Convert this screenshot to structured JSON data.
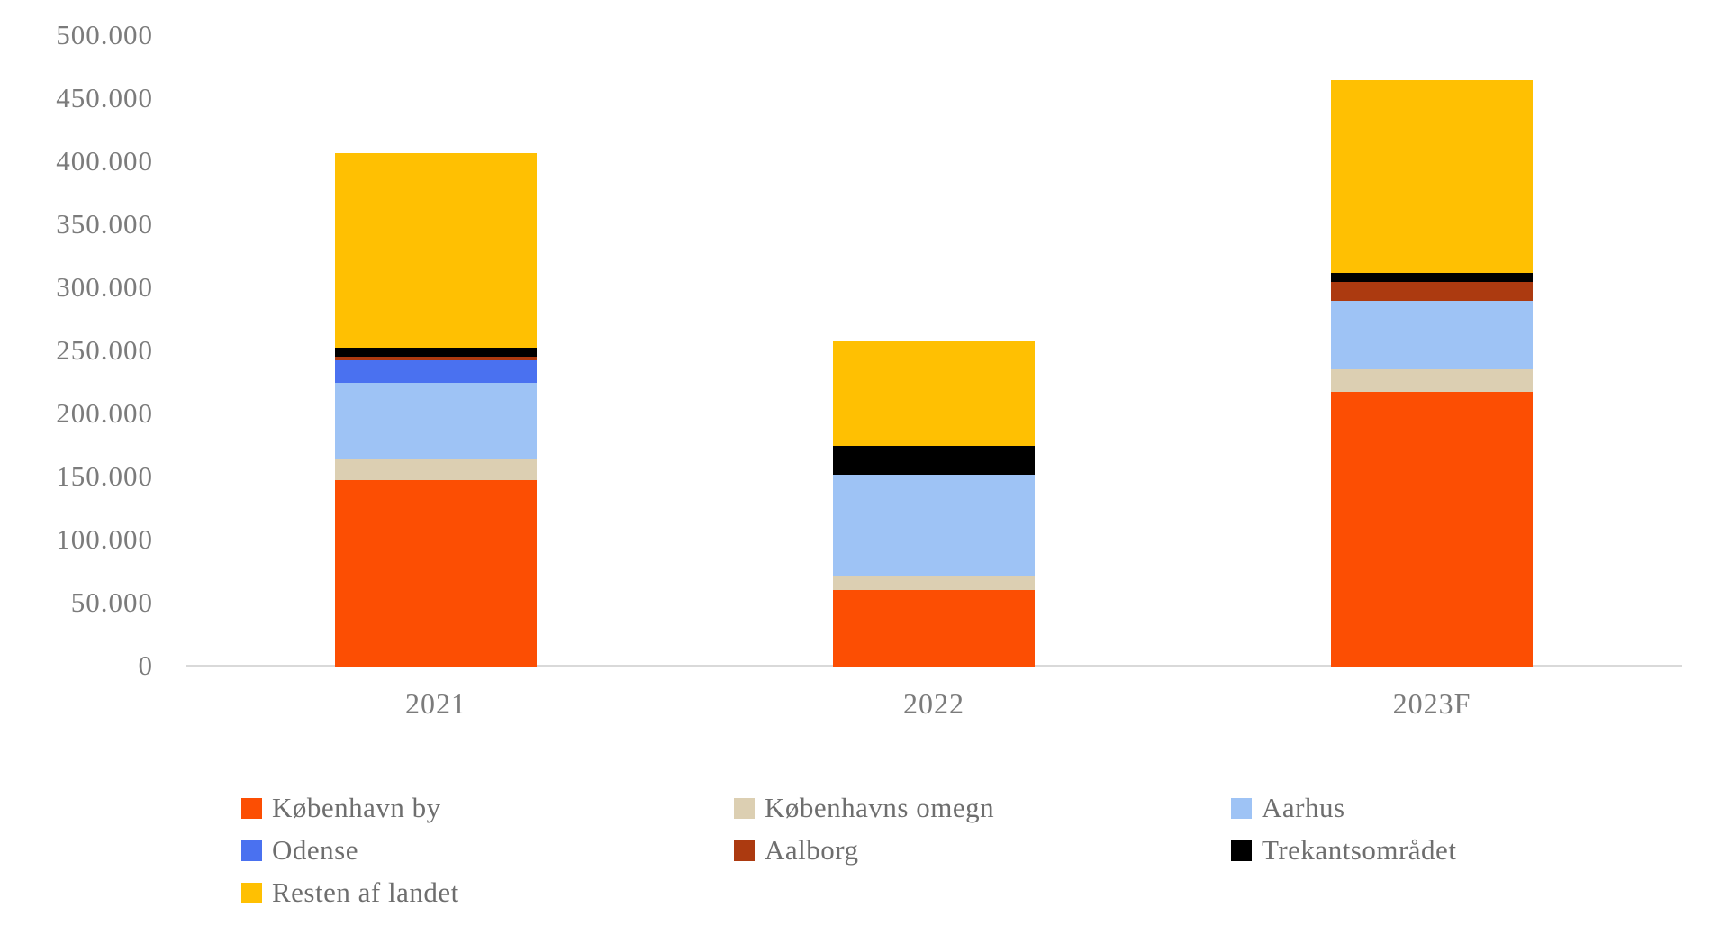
{
  "chart_data": {
    "type": "bar",
    "stacked": true,
    "title": "",
    "xlabel": "",
    "ylabel": "",
    "categories": [
      "2021",
      "2022",
      "2023F"
    ],
    "series": [
      {
        "name": "København by",
        "color": "#fc4e03",
        "values": [
          148000,
          61000,
          218000
        ]
      },
      {
        "name": "Københavns omegn",
        "color": "#dccfb2",
        "values": [
          16000,
          11000,
          18000
        ]
      },
      {
        "name": "Aarhus",
        "color": "#9ec3f5",
        "values": [
          61000,
          80000,
          54000
        ]
      },
      {
        "name": "Odense",
        "color": "#4a71f0",
        "values": [
          18000,
          0,
          0
        ]
      },
      {
        "name": "Aalborg",
        "color": "#ac3a10",
        "values": [
          3000,
          0,
          15000
        ]
      },
      {
        "name": "Trekantsområdet",
        "color": "#000000",
        "values": [
          7000,
          23000,
          7000
        ]
      },
      {
        "name": "Resten af landet",
        "color": "#ffc002",
        "values": [
          154000,
          83000,
          153000
        ]
      }
    ],
    "totals": [
      407000,
      258000,
      465000
    ],
    "y_axis": {
      "min": 0,
      "max": 500000,
      "step": 50000,
      "tick_labels": [
        "0",
        "50.000",
        "100.000",
        "150.000",
        "200.000",
        "250.000",
        "300.000",
        "350.000",
        "400.000",
        "450.000",
        "500.000"
      ]
    },
    "legend": {
      "position": "bottom",
      "columns": 3,
      "entries": [
        "København by",
        "Københavns omegn",
        "Aarhus",
        "Odense",
        "Aalborg",
        "Trekantsområdet",
        "Resten af landet"
      ]
    },
    "grid": false,
    "colors": {
      "axis_text": "#7b7b7b",
      "legend_text": "#6e6e6e",
      "axis_line": "#d9d9d9",
      "background": "#ffffff"
    }
  }
}
